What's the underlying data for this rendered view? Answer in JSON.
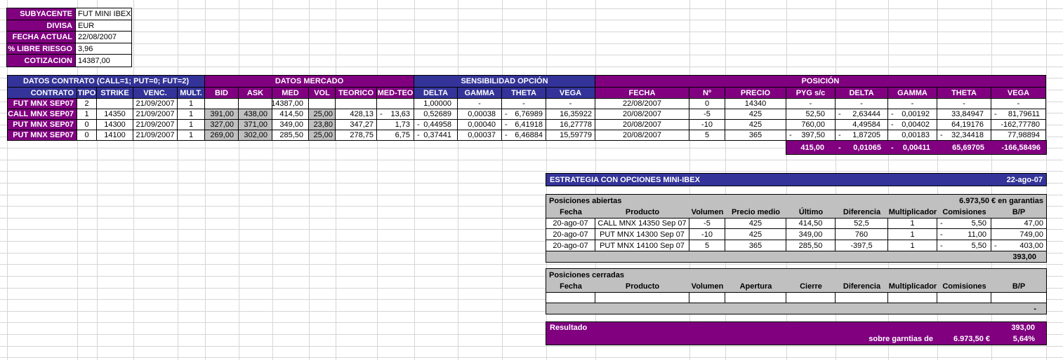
{
  "colors": {
    "purple": "#800080",
    "blue": "#333399",
    "gray": "#C0C0C0",
    "gridline": "#d6d6d6"
  },
  "info_panel": {
    "rows": [
      {
        "label": "SUBYACENTE",
        "value": "FUT MINI IBEX"
      },
      {
        "label": "DIVISA",
        "value": "EUR"
      },
      {
        "label": "FECHA ACTUAL",
        "value": "22/08/2007"
      },
      {
        "label": "% LIBRE RIESGO",
        "value": "3,96"
      },
      {
        "label": "COTIZACION",
        "value": "14387,00"
      }
    ]
  },
  "main_table": {
    "group_headers": [
      "DATOS CONTRATO (CALL=1; PUT=0; FUT=2)",
      "DATOS MERCADO",
      "SENSIBILIDAD OPCIÓN",
      "POSICIÓN"
    ],
    "columns": [
      "CONTRATO",
      "TIPO",
      "STRIKE",
      "VENC.",
      "MULT.",
      "BID",
      "ASK",
      "MED",
      "VOL",
      "TEORICO",
      "MED-TEO",
      "DELTA",
      "GAMMA",
      "THETA",
      "VEGA",
      "FECHA",
      "Nº",
      "PRECIO",
      "PYG s/c",
      "DELTA",
      "GAMMA",
      "THETA",
      "VEGA"
    ],
    "rows": [
      [
        "FUT MNX SEP07",
        "2",
        "",
        "21/09/2007",
        "1",
        "",
        "",
        "14387,00",
        "",
        "",
        "",
        "1,00000",
        "-",
        "-",
        "-",
        "22/08/2007",
        "0",
        "14340",
        "-",
        "-",
        "-",
        "-",
        "-"
      ],
      [
        "CALL MNX SEP07",
        "1",
        "14350",
        "21/09/2007",
        "1",
        "391,00",
        "438,00",
        "414,50",
        "25,00",
        "428,13",
        "- 13,63",
        "0,52689",
        "0,00038",
        "- 6,76989",
        "16,35922",
        "20/08/2007",
        "-5",
        "425",
        "52,50",
        "- 2,63444",
        "- 0,00192",
        "33,84947",
        "- 81,79611"
      ],
      [
        "PUT MNX SEP07",
        "0",
        "14300",
        "21/09/2007",
        "1",
        "327,00",
        "371,00",
        "349,00",
        "23,80",
        "347,27",
        "1,73",
        "- 0,44958",
        "0,00040",
        "- 6,41918",
        "16,27778",
        "20/08/2007",
        "-10",
        "425",
        "760,00",
        "4,49584",
        "- 0,00402",
        "64,19176",
        "-162,77780"
      ],
      [
        "PUT MNX SEP07",
        "0",
        "14100",
        "21/09/2007",
        "1",
        "269,00",
        "302,00",
        "285,50",
        "25,00",
        "278,75",
        "6,75",
        "- 0,37441",
        "0,00037",
        "- 6,46884",
        "15,59779",
        "20/08/2007",
        "5",
        "365",
        "- 397,50",
        "- 1,87205",
        "0,00183",
        "- 32,34418",
        "77,98894"
      ]
    ],
    "totals": [
      "415,00",
      "- 0,01065",
      "- 0,00411",
      "65,69705",
      "-166,58496"
    ]
  },
  "strategy": {
    "title": "ESTRATEGIA CON OPCIONES MINI-IBEX",
    "date": "22-ago-07",
    "open_positions": {
      "title": "Posiciones abiertas",
      "note": "6.973,50 € en garantias",
      "columns": [
        "Fecha",
        "Producto",
        "Volumen",
        "Precio medio",
        "Último",
        "Diferencia",
        "Multiplicador",
        "Comisiones",
        "B/P"
      ],
      "rows": [
        [
          "20-ago-07",
          "CALL MNX 14350 Sep 07",
          "-5",
          "425",
          "414,50",
          "52,5",
          "1",
          "- 5,50",
          "47,00"
        ],
        [
          "20-ago-07",
          "PUT MNX 14300 Sep 07",
          "-10",
          "425",
          "349,00",
          "760",
          "1",
          "- 11,00",
          "749,00"
        ],
        [
          "20-ago-07",
          "PUT MNX 14100 Sep 07",
          "5",
          "365",
          "285,50",
          "-397,5",
          "1",
          "- 5,50",
          "- 403,00"
        ]
      ],
      "total": "393,00"
    },
    "closed_positions": {
      "title": "Posiciones cerradas",
      "columns": [
        "Fecha",
        "Producto",
        "Volumen",
        "Apertura",
        "Cierre",
        "Diferencia",
        "Multiplicador",
        "Comisiones",
        "B/P"
      ],
      "rows": [
        [
          "",
          "",
          "",
          "",
          "",
          "",
          "",
          "",
          ""
        ]
      ],
      "total": "-"
    },
    "result": {
      "label": "Resultado",
      "value": "393,00",
      "sub_label": "sobre garntias de",
      "guarantee": "6.973,50 €",
      "percent": "5,64%"
    }
  }
}
